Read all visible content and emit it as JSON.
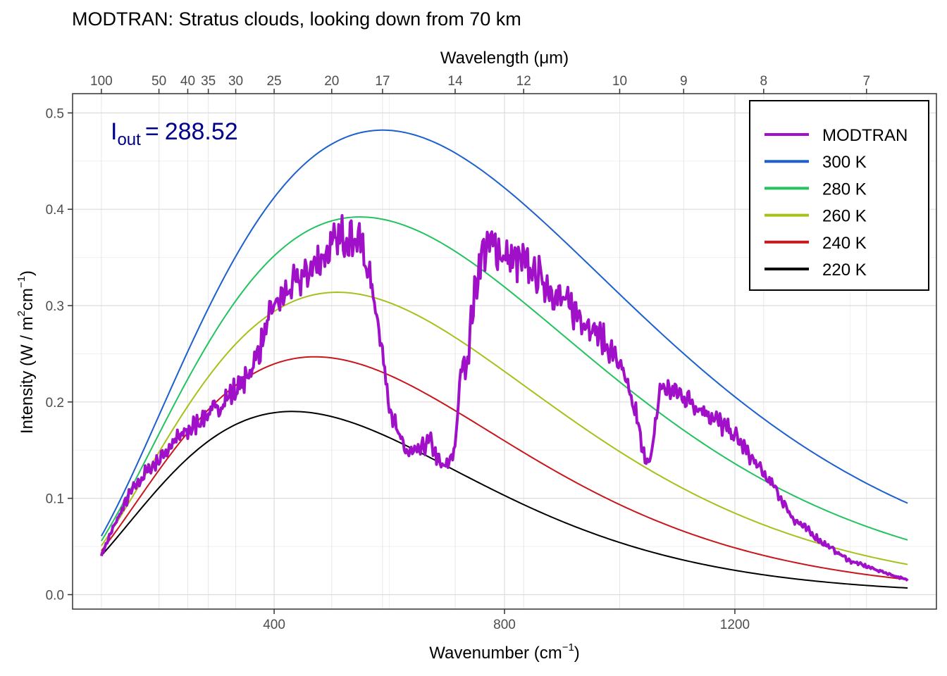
{
  "chart_data": {
    "type": "line",
    "title": "MODTRAN: Stratus clouds, looking down from 70 km",
    "xlabel": "Wavenumber (cm",
    "xlabel_sup": "−1",
    "xlabel_end": ")",
    "top_axis_label": "Wavelength (μm)",
    "ylabel": "Intensity (W / m",
    "ylabel_sup1": "2",
    "ylabel_mid": "cm",
    "ylabel_sup2": "−1",
    "ylabel_end": ")",
    "xlim": [
      50,
      1550
    ],
    "ylim": [
      -0.015,
      0.52
    ],
    "x_ticks": [
      400,
      800,
      1200
    ],
    "y_ticks": [
      0.0,
      0.1,
      0.2,
      0.3,
      0.4,
      0.5
    ],
    "y_tick_labels": [
      "0.0",
      "0.1",
      "0.2",
      "0.3",
      "0.4",
      "0.5"
    ],
    "top_ticks": [
      {
        "wavenumber": 100,
        "label": "100"
      },
      {
        "wavenumber": 200,
        "label": "50"
      },
      {
        "wavenumber": 250,
        "label": "40"
      },
      {
        "wavenumber": 285.7,
        "label": "35"
      },
      {
        "wavenumber": 333.3,
        "label": "30"
      },
      {
        "wavenumber": 400,
        "label": "25"
      },
      {
        "wavenumber": 500,
        "label": "20"
      },
      {
        "wavenumber": 588.2,
        "label": "17"
      },
      {
        "wavenumber": 714.3,
        "label": "14"
      },
      {
        "wavenumber": 833.3,
        "label": "12"
      },
      {
        "wavenumber": 1000,
        "label": "10"
      },
      {
        "wavenumber": 1111.1,
        "label": "9"
      },
      {
        "wavenumber": 1250,
        "label": "8"
      },
      {
        "wavenumber": 1428.6,
        "label": "7"
      }
    ],
    "grid": true,
    "legend_position": "top-right",
    "annotation": {
      "symbol": "I",
      "subscript": "out",
      "equals": "=",
      "value": "288.52"
    },
    "series": [
      {
        "name": "MODTRAN",
        "color": "#a010c8",
        "x": [
          100,
          125,
          150,
          175,
          200,
          225,
          250,
          275,
          300,
          325,
          350,
          375,
          400,
          425,
          450,
          475,
          500,
          525,
          550,
          565,
          580,
          590,
          600,
          615,
          630,
          650,
          670,
          690,
          700,
          715,
          725,
          735,
          745,
          760,
          780,
          800,
          830,
          860,
          900,
          950,
          1000,
          1020,
          1030,
          1040,
          1055,
          1070,
          1100,
          1150,
          1200,
          1250,
          1270,
          1300,
          1350,
          1400,
          1450,
          1500
        ],
        "values": [
          0.041,
          0.075,
          0.105,
          0.125,
          0.14,
          0.158,
          0.17,
          0.183,
          0.193,
          0.208,
          0.222,
          0.255,
          0.3,
          0.315,
          0.33,
          0.345,
          0.36,
          0.375,
          0.368,
          0.33,
          0.29,
          0.24,
          0.2,
          0.165,
          0.148,
          0.147,
          0.16,
          0.133,
          0.133,
          0.155,
          0.24,
          0.24,
          0.3,
          0.355,
          0.365,
          0.35,
          0.345,
          0.33,
          0.305,
          0.28,
          0.24,
          0.2,
          0.185,
          0.145,
          0.14,
          0.215,
          0.21,
          0.19,
          0.165,
          0.125,
          0.11,
          0.08,
          0.055,
          0.035,
          0.025,
          0.015
        ]
      },
      {
        "name": "300 K",
        "color": "#1c5fcf",
        "temperature": 300
      },
      {
        "name": "280 K",
        "color": "#22c35e",
        "temperature": 280
      },
      {
        "name": "260 K",
        "color": "#a8c01a",
        "temperature": 260
      },
      {
        "name": "240 K",
        "color": "#c8161c",
        "temperature": 240
      },
      {
        "name": "220 K",
        "color": "#000000",
        "temperature": 220
      }
    ],
    "blackbody_x_range": [
      100,
      1500
    ]
  }
}
